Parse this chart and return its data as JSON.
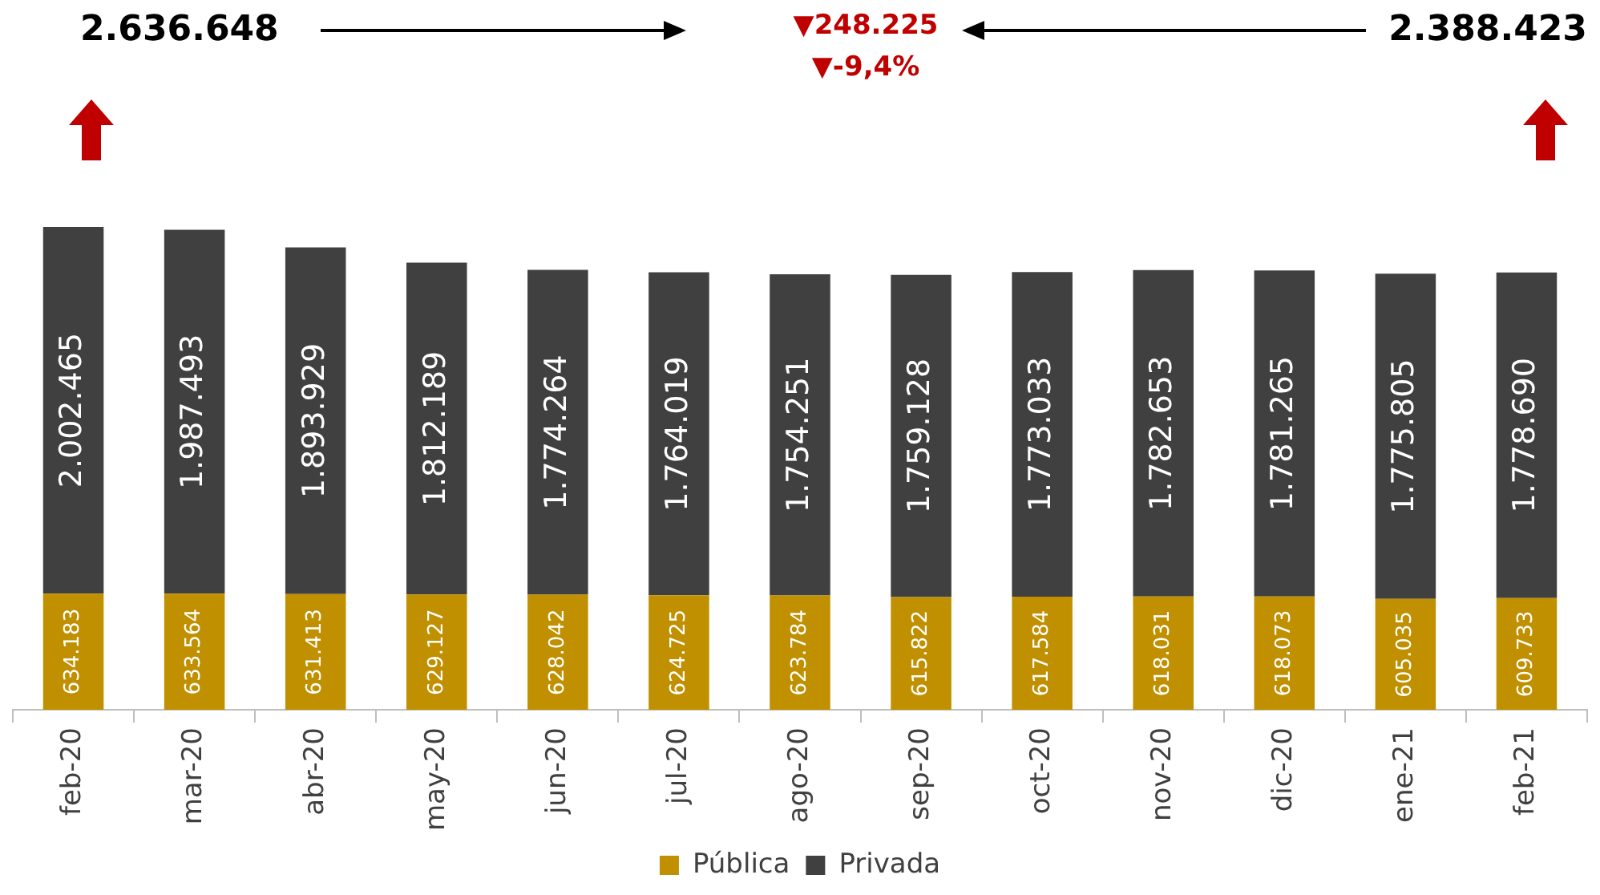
{
  "chart_data": {
    "type": "bar",
    "stacked": true,
    "legend": "bottom",
    "tick_labels": "x",
    "grid": false,
    "categories": [
      "feb-20",
      "mar-20",
      "abr-20",
      "may-20",
      "jun-20",
      "jul-20",
      "ago-20",
      "sep-20",
      "oct-20",
      "nov-20",
      "dic-20",
      "ene-21",
      "feb-21"
    ],
    "series": [
      {
        "name": "Pública",
        "color": "#c09000",
        "values": [
          634183,
          633564,
          631413,
          629127,
          628042,
          624725,
          623784,
          615822,
          617584,
          618031,
          618073,
          605035,
          609733
        ],
        "value_labels": [
          "634.183",
          "633.564",
          "631.413",
          "629.127",
          "628.042",
          "624.725",
          "623.784",
          "615.822",
          "617.584",
          "618.031",
          "618.073",
          "605.035",
          "609.733"
        ]
      },
      {
        "name": "Privada",
        "color": "#404040",
        "values": [
          2002465,
          1987493,
          1893929,
          1812189,
          1774264,
          1764019,
          1754251,
          1759128,
          1773033,
          1782653,
          1781265,
          1775805,
          1778690
        ],
        "value_labels": [
          "2.002.465",
          "1.987.493",
          "1.893.929",
          "1.812.189",
          "1.774.264",
          "1.764.019",
          "1.754.251",
          "1.759.128",
          "1.773.033",
          "1.782.653",
          "1.781.265",
          "1.775.805",
          "1.778.690"
        ]
      }
    ],
    "annotations": [
      "2.636.648",
      "▼248.225",
      "▼-9,4%",
      "2.388.423"
    ]
  }
}
